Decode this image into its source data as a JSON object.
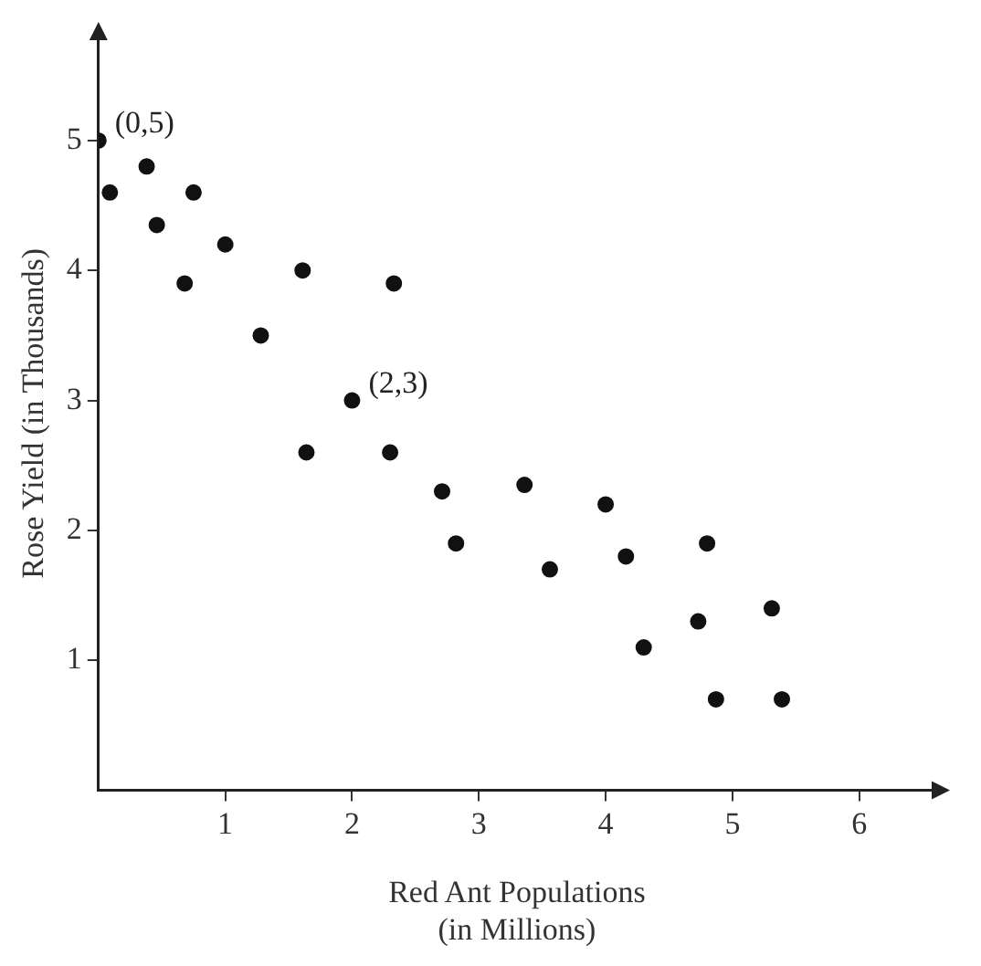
{
  "chart_data": {
    "type": "scatter",
    "xlabel": "Red Ant Populations\n(in Millions)",
    "ylabel": "Rose Yield (in Thousands)",
    "x": [
      0,
      0.09,
      0.38,
      0.46,
      0.75,
      0.68,
      1,
      1.28,
      1.61,
      2.33,
      2,
      1.64,
      2.3,
      2.71,
      2.82,
      3.36,
      3.56,
      4,
      4.16,
      4.3,
      4.8,
      4.73,
      4.87,
      5.31,
      5.39
    ],
    "series": [
      {
        "color": "#111111",
        "values": [
          5,
          4.6,
          4.8,
          4.35,
          4.6,
          3.9,
          4.2,
          3.5,
          4,
          3.9,
          3,
          2.6,
          2.6,
          2.3,
          1.9,
          2.35,
          1.7,
          2.2,
          1.8,
          1.1,
          1.9,
          1.3,
          0.7,
          1.4,
          0.7
        ]
      }
    ],
    "xlim": [
      0,
      6.6
    ],
    "xticks": [
      1,
      2,
      3,
      4,
      5,
      6
    ],
    "ylim": [
      0,
      5.8
    ],
    "yticks": [
      1,
      2,
      3,
      4,
      5
    ],
    "marker": "circle",
    "legend": false,
    "grid": false,
    "annotations": [
      {
        "text": "(0,5)",
        "x": 0,
        "y": 5
      },
      {
        "text": "(2,3)",
        "x": 2,
        "y": 3
      }
    ]
  }
}
